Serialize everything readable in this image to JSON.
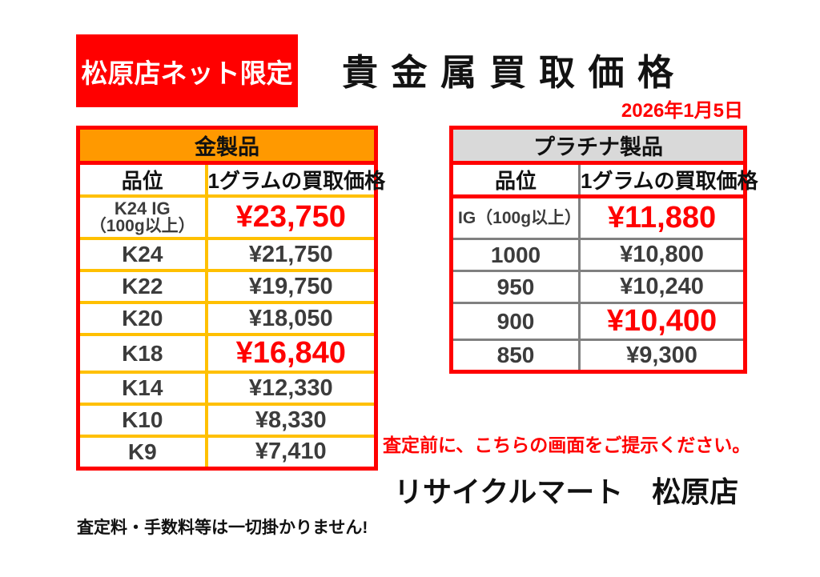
{
  "header": {
    "badge": "松原店ネット限定",
    "title": "貴 金 属 買 取 価 格",
    "date": "2026年1月5日"
  },
  "gold_table": {
    "title": "金製品",
    "columns": [
      "品位",
      "1グラムの買取価格"
    ],
    "rows": [
      {
        "grade": "K24 IG",
        "grade_note": "（100g以上）",
        "price": "¥23,750",
        "highlight": true
      },
      {
        "grade": "K24",
        "price": "¥21,750",
        "highlight": false
      },
      {
        "grade": "K22",
        "price": "¥19,750",
        "highlight": false
      },
      {
        "grade": "K20",
        "price": "¥18,050",
        "highlight": false
      },
      {
        "grade": "K18",
        "price": "¥16,840",
        "highlight": true
      },
      {
        "grade": "K14",
        "price": "¥12,330",
        "highlight": false
      },
      {
        "grade": "K10",
        "price": "¥8,330",
        "highlight": false
      },
      {
        "grade": "K9",
        "price": "¥7,410",
        "highlight": false
      }
    ]
  },
  "platinum_table": {
    "title": "プラチナ製品",
    "columns": [
      "品位",
      "1グラムの買取価格"
    ],
    "rows": [
      {
        "grade": "IG（100g以上）",
        "price": "¥11,880",
        "highlight": true
      },
      {
        "grade": "1000",
        "price": "¥10,800",
        "highlight": false
      },
      {
        "grade": "950",
        "price": "¥10,240",
        "highlight": false
      },
      {
        "grade": "900",
        "price": "¥10,400",
        "highlight": true
      },
      {
        "grade": "850",
        "price": "¥9,300",
        "highlight": false
      }
    ]
  },
  "footer": {
    "notice": "査定前に、こちらの画面をご提示ください。",
    "store_name": "リサイクルマート　松原店",
    "footnote": "査定料・手数料等は一切掛かりません!"
  },
  "colors": {
    "accent_red": "#FF0000",
    "gold_header_bg": "#FF9900",
    "gold_grid": "#FFC000",
    "platinum_header_bg": "#D9D9D9",
    "platinum_grid": "#808080"
  }
}
